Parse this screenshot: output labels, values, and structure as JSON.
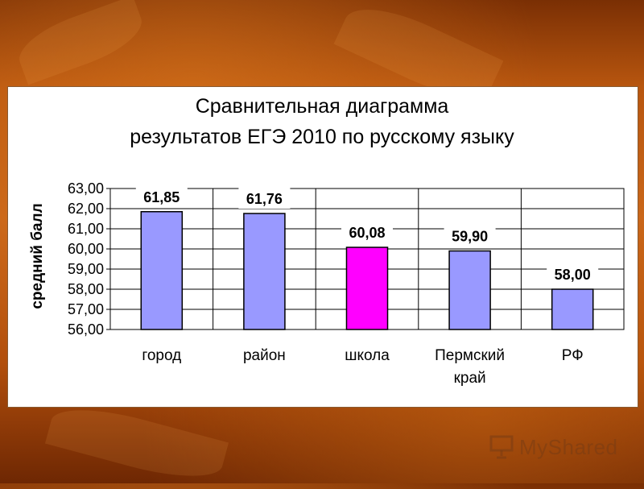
{
  "slide": {
    "title_line1": "Сравнительная диаграмма",
    "title_line2": "результатов ЕГЭ 2010 по русскому языку"
  },
  "watermark": {
    "text": "MyShared",
    "icon": "presentation-screen-icon"
  },
  "colors": {
    "bar": "#9999ff",
    "highlight": "#ff00ff",
    "background": "#b8560f"
  },
  "chart_data": {
    "type": "bar",
    "title": "Сравнительная диаграмма результатов ЕГЭ 2010 по русскому языку",
    "ylabel": "средний балл",
    "xlabel": "",
    "categories": [
      [
        "город"
      ],
      [
        "район"
      ],
      [
        "школа"
      ],
      [
        "Пермский",
        "край"
      ],
      [
        "РФ"
      ]
    ],
    "values": [
      61.85,
      61.76,
      60.08,
      59.9,
      58.0
    ],
    "value_labels": [
      "61,85",
      "61,76",
      "60,08",
      "59,90",
      "58,00"
    ],
    "highlight_index": 2,
    "ylim": [
      56,
      63
    ],
    "yticks": [
      "56,00",
      "57,00",
      "58,00",
      "59,00",
      "60,00",
      "61,00",
      "62,00",
      "63,00"
    ],
    "grid": true,
    "legend": "none"
  }
}
